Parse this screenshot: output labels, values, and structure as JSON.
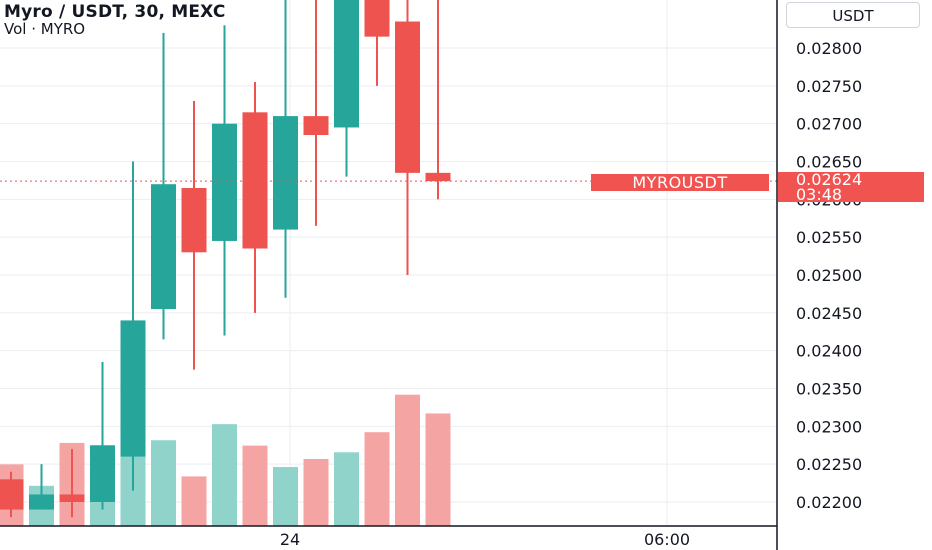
{
  "header": {
    "title": "Myro / USDT, 30, MEXC",
    "volume_label": "Vol · MYRO"
  },
  "currency_button": "USDT",
  "symbol_badge": "MYROUSDT",
  "price_badge": {
    "price": "0.02624",
    "countdown": "03:48"
  },
  "colors": {
    "up": "#26a69a",
    "down": "#ef5350",
    "up_vol": "#8fd3cb",
    "down_vol": "#f5a4a4",
    "grid": "#eceef2",
    "axis": "#131722"
  },
  "chart_data": {
    "type": "candlestick",
    "title": "Myro / USDT, 30, MEXC",
    "ylim": [
      0.02175,
      0.0288
    ],
    "y_ticks": [
      "0.02200",
      "0.02250",
      "0.02300",
      "0.02350",
      "0.02400",
      "0.02450",
      "0.02500",
      "0.02550",
      "0.02600",
      "0.02650",
      "0.02700",
      "0.02750",
      "0.02800"
    ],
    "x_ticks": [
      "24",
      "06:00"
    ],
    "last_price": 0.02624,
    "candles": [
      {
        "o": 0.0223,
        "h": 0.0224,
        "l": 0.0218,
        "c": 0.0219
      },
      {
        "o": 0.0219,
        "h": 0.0225,
        "l": 0.0219,
        "c": 0.0221
      },
      {
        "o": 0.0221,
        "h": 0.0227,
        "l": 0.0218,
        "c": 0.022
      },
      {
        "o": 0.022,
        "h": 0.02385,
        "l": 0.0219,
        "c": 0.02275
      },
      {
        "o": 0.0226,
        "h": 0.0265,
        "l": 0.02215,
        "c": 0.0244
      },
      {
        "o": 0.02455,
        "h": 0.0282,
        "l": 0.02415,
        "c": 0.0262
      },
      {
        "o": 0.02615,
        "h": 0.0273,
        "l": 0.02375,
        "c": 0.0253
      },
      {
        "o": 0.02545,
        "h": 0.0283,
        "l": 0.0242,
        "c": 0.027
      },
      {
        "o": 0.02715,
        "h": 0.02755,
        "l": 0.0245,
        "c": 0.02535
      },
      {
        "o": 0.0256,
        "h": 0.029,
        "l": 0.0247,
        "c": 0.0271
      },
      {
        "o": 0.0271,
        "h": 0.029,
        "l": 0.02565,
        "c": 0.02685
      },
      {
        "o": 0.02695,
        "h": 0.029,
        "l": 0.0263,
        "c": 0.029
      },
      {
        "o": 0.029,
        "h": 0.029,
        "l": 0.0275,
        "c": 0.02815
      },
      {
        "o": 0.02835,
        "h": 0.029,
        "l": 0.025,
        "c": 0.02635
      },
      {
        "o": 0.02635,
        "h": 0.029,
        "l": 0.026,
        "c": 0.02624
      }
    ],
    "volume_relative": [
      0.46,
      0.3,
      0.62,
      0.58,
      0.58,
      0.64,
      0.37,
      0.76,
      0.6,
      0.44,
      0.5,
      0.55,
      0.7,
      0.98,
      0.84
    ]
  }
}
